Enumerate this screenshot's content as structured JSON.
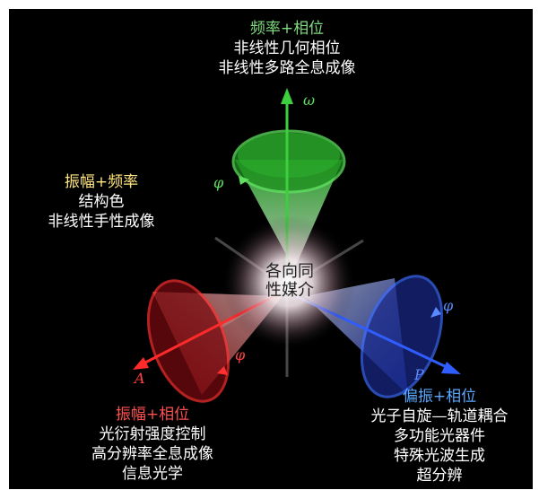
{
  "top": {
    "header": "频率+相位",
    "lines": [
      "非线性几何相位",
      "非线性多路全息成像"
    ]
  },
  "left": {
    "header": "振幅+频率",
    "lines": [
      "结构色",
      "非线性手性成像"
    ]
  },
  "bottom_left": {
    "header": "振幅+相位",
    "lines": [
      "光衍射强度控制",
      "高分辨率全息成像",
      "信息光学"
    ]
  },
  "bottom_right": {
    "header": "偏振+相位",
    "lines": [
      "光子自旋—轨道耦合",
      "多功能光器件",
      "特殊光波生成",
      "超分辨"
    ]
  },
  "center": {
    "lines": [
      "各向同",
      "性媒介"
    ]
  },
  "symbols": {
    "omega": "ω",
    "phi_green": "φ",
    "phi_red": "φ",
    "phi_blue": "φ",
    "A": "A",
    "P": "P"
  },
  "colors": {
    "background": "#000000",
    "green": "#3ecf3e",
    "red": "#ff2a2a",
    "blue": "#2f5dff",
    "green_text": "#7fdc7f",
    "yellow_text": "#ffe680",
    "red_text": "#ff5050",
    "blue_text": "#5aa8ff"
  }
}
